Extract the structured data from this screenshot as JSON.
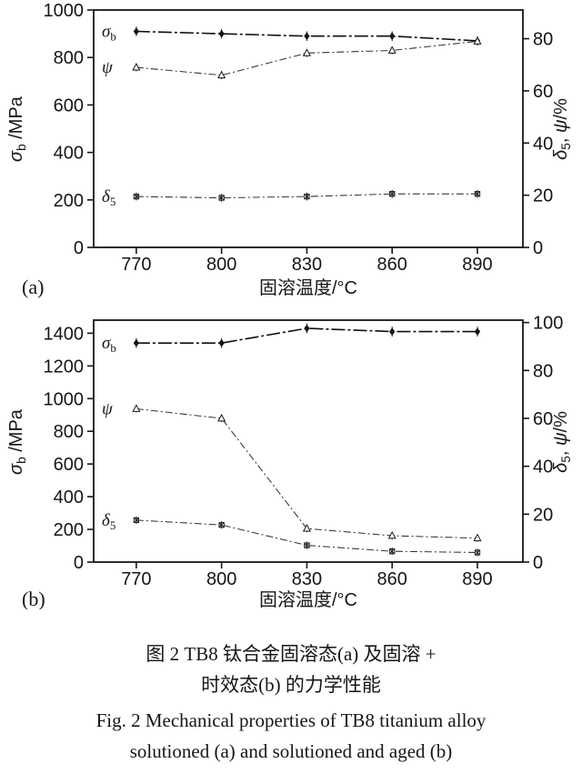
{
  "figure": {
    "caption_cn_1": "图 2  TB8 钛合金固溶态(a) 及固溶 +",
    "caption_cn_2": "时效态(b) 的力学性能",
    "caption_en_1": "Fig. 2  Mechanical properties of TB8 titanium alloy",
    "caption_en_2": "solutioned (a) and solutioned and aged (b)"
  },
  "chart_data": [
    {
      "id": "a",
      "type": "line",
      "panel_label": "(a)",
      "title": "",
      "xlabel": "固溶温度/°C",
      "x": [
        770,
        800,
        830,
        860,
        890
      ],
      "x_ticks": [
        770,
        800,
        830,
        860,
        890
      ],
      "x_range": [
        755,
        906
      ],
      "grid": false,
      "legend_position": "inline-labels",
      "left_axis": {
        "label": "σb /MPa",
        "label_parts": [
          {
            "t": "σ",
            "italic": true
          },
          {
            "t": "b",
            "sub": true
          },
          {
            "t": " /MPa"
          }
        ],
        "range": [
          0,
          1000
        ],
        "ticks": [
          0,
          200,
          400,
          600,
          800,
          1000
        ]
      },
      "right_axis": {
        "label": "δ5, ψ/%",
        "label_parts": [
          {
            "t": "δ",
            "italic": true
          },
          {
            "t": "5",
            "sub": true
          },
          {
            "t": ", "
          },
          {
            "t": "ψ",
            "italic": true
          },
          {
            "t": "/%"
          }
        ],
        "range": [
          0,
          91
        ],
        "ticks": [
          0,
          20,
          40,
          60,
          80
        ]
      },
      "series": [
        {
          "name": "σb",
          "label_parts": [
            {
              "t": "σ",
              "italic": true
            },
            {
              "t": "b",
              "sub": true
            }
          ],
          "axis": "left",
          "marker": "diamond",
          "line": "longdashdot",
          "error": 20,
          "values": [
            910,
            900,
            890,
            890,
            870
          ]
        },
        {
          "name": "ψ",
          "label_parts": [
            {
              "t": "ψ",
              "italic": true
            }
          ],
          "axis": "right",
          "marker": "triangle",
          "line": "dashdot",
          "error": 1.5,
          "values": [
            69,
            66,
            74.5,
            75.5,
            79
          ]
        },
        {
          "name": "δ5",
          "label_parts": [
            {
              "t": "δ",
              "italic": true
            },
            {
              "t": "5",
              "sub": true
            }
          ],
          "axis": "right",
          "marker": "boxx",
          "line": "dashdot",
          "error": 1.5,
          "values": [
            19.5,
            19,
            19.5,
            20.5,
            20.5
          ]
        }
      ]
    },
    {
      "id": "b",
      "type": "line",
      "panel_label": "(b)",
      "title": "",
      "xlabel": "固溶温度/°C",
      "x": [
        770,
        800,
        830,
        860,
        890
      ],
      "x_ticks": [
        770,
        800,
        830,
        860,
        890
      ],
      "x_range": [
        755,
        906
      ],
      "grid": false,
      "legend_position": "inline-labels",
      "left_axis": {
        "label": "σb /MPa",
        "label_parts": [
          {
            "t": "σ",
            "italic": true
          },
          {
            "t": "b",
            "sub": true
          },
          {
            "t": " /MPa"
          }
        ],
        "range": [
          0,
          1480
        ],
        "ticks": [
          0,
          200,
          400,
          600,
          800,
          1000,
          1200,
          1400
        ]
      },
      "right_axis": {
        "label": "δ5, ψ/%",
        "label_parts": [
          {
            "t": "δ",
            "italic": true
          },
          {
            "t": "5",
            "sub": true
          },
          {
            "t": ", "
          },
          {
            "t": "ψ",
            "italic": true
          },
          {
            "t": "/%"
          }
        ],
        "range": [
          0,
          101
        ],
        "ticks": [
          0,
          20,
          40,
          60,
          80,
          100
        ]
      },
      "series": [
        {
          "name": "σb",
          "label_parts": [
            {
              "t": "σ",
              "italic": true
            },
            {
              "t": "b",
              "sub": true
            }
          ],
          "axis": "left",
          "marker": "diamond",
          "line": "longdashdot",
          "error": 30,
          "values": [
            1340,
            1340,
            1430,
            1410,
            1410
          ]
        },
        {
          "name": "ψ",
          "label_parts": [
            {
              "t": "ψ",
              "italic": true
            }
          ],
          "axis": "right",
          "marker": "triangle",
          "line": "dashdot",
          "error": 1.5,
          "values": [
            64,
            60,
            14,
            11,
            10
          ]
        },
        {
          "name": "δ5",
          "label_parts": [
            {
              "t": "δ",
              "italic": true
            },
            {
              "t": "5",
              "sub": true
            }
          ],
          "axis": "right",
          "marker": "boxx",
          "line": "dashdot",
          "error": 1.5,
          "values": [
            17.5,
            15.5,
            7,
            4.5,
            4
          ]
        }
      ]
    }
  ]
}
